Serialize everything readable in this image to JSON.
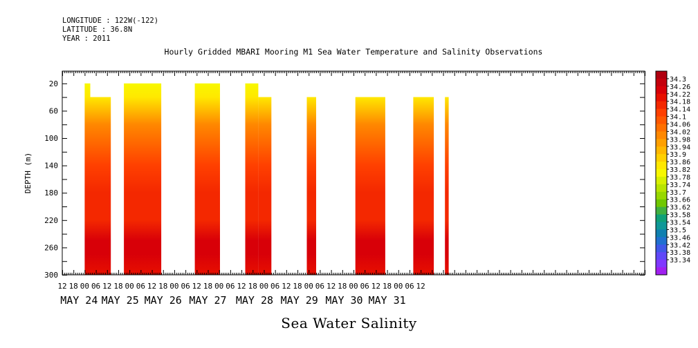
{
  "header": {
    "longitude": "LONGITUDE : 122W(-122)",
    "latitude": "LATITUDE : 36.8N",
    "year": "YEAR : 2011"
  },
  "title": "Hourly Gridded MBARI Mooring M1 Sea Water Temperature and Salinity Observations",
  "footer_title": "Sea Water Salinity",
  "chart_data": {
    "type": "heatmap",
    "title": "Hourly Gridded MBARI Mooring M1 Sea Water Temperature and Salinity Observations",
    "xlabel": "",
    "ylabel": "DEPTH (m)",
    "x_range_hours_from_may24_00": [
      -12,
      300
    ],
    "ylim": [
      300,
      0
    ],
    "y_ticks": [
      20,
      60,
      100,
      140,
      180,
      220,
      260,
      300
    ],
    "x_hour_ticks": [
      "12",
      "18",
      "00",
      "06",
      "12",
      "18",
      "00",
      "06",
      "12",
      "18",
      "00",
      "06",
      "12",
      "18",
      "00",
      "06",
      "12",
      "18",
      "00",
      "06",
      "12",
      "18",
      "00",
      "06",
      "12",
      "18",
      "00",
      "06",
      "12",
      "18",
      "00",
      "06",
      "12"
    ],
    "x_day_labels": [
      "MAY 24",
      "MAY 25",
      "MAY 26",
      "MAY 27",
      "MAY 28",
      "MAY 29",
      "MAY 30",
      "MAY 31"
    ],
    "colorbar": {
      "labels": [
        "34.3",
        "34.26",
        "34.22",
        "34.18",
        "34.14",
        "34.1",
        "34.06",
        "34.02",
        "33.98",
        "33.94",
        "33.9",
        "33.86",
        "33.82",
        "33.78",
        "33.74",
        "33.7",
        "33.66",
        "33.62",
        "33.58",
        "33.54",
        "33.5",
        "33.46",
        "33.42",
        "33.38",
        "33.34"
      ],
      "colors": [
        "#b00010",
        "#c4000c",
        "#d80008",
        "#e81000",
        "#f42800",
        "#ff4000",
        "#ff5800",
        "#ff7000",
        "#ff8800",
        "#ffa000",
        "#ffb800",
        "#ffd000",
        "#ffe800",
        "#f8f800",
        "#d8f000",
        "#b8e400",
        "#98d800",
        "#70c800",
        "#40b040",
        "#10a078",
        "#109898",
        "#1080b0",
        "#2070d0",
        "#4058e8",
        "#6048f8",
        "#8038ff",
        "#a020f0"
      ]
    },
    "segments": [
      {
        "start_hour": 0,
        "end_hour": 3,
        "top_depth": 20,
        "bottom_depth": 300
      },
      {
        "start_hour": 3,
        "end_hour": 14,
        "top_depth": 40,
        "bottom_depth": 300
      },
      {
        "start_hour": 21,
        "end_hour": 41,
        "top_depth": 20,
        "bottom_depth": 300
      },
      {
        "start_hour": 59,
        "end_hour": 72.5,
        "top_depth": 20,
        "bottom_depth": 300
      },
      {
        "start_hour": 86,
        "end_hour": 93,
        "top_depth": 20,
        "bottom_depth": 300
      },
      {
        "start_hour": 93,
        "end_hour": 100,
        "top_depth": 40,
        "bottom_depth": 300
      },
      {
        "start_hour": 119,
        "end_hour": 124,
        "top_depth": 40,
        "bottom_depth": 300
      },
      {
        "start_hour": 145,
        "end_hour": 161,
        "top_depth": 40,
        "bottom_depth": 300
      },
      {
        "start_hour": 176,
        "end_hour": 187,
        "top_depth": 40,
        "bottom_depth": 300
      },
      {
        "start_hour": 193,
        "end_hour": 195,
        "top_depth": 40,
        "bottom_depth": 300
      }
    ],
    "salinity_profile": [
      {
        "depth": 20,
        "value": 33.78
      },
      {
        "depth": 40,
        "value": 33.86
      },
      {
        "depth": 60,
        "value": 33.92
      },
      {
        "depth": 80,
        "value": 34.0
      },
      {
        "depth": 100,
        "value": 34.05
      },
      {
        "depth": 140,
        "value": 34.12
      },
      {
        "depth": 180,
        "value": 34.14
      },
      {
        "depth": 220,
        "value": 34.17
      },
      {
        "depth": 250,
        "value": 34.25
      },
      {
        "depth": 270,
        "value": 34.24
      },
      {
        "depth": 300,
        "value": 34.19
      }
    ],
    "grid": false,
    "legend": "colorbar-right"
  }
}
